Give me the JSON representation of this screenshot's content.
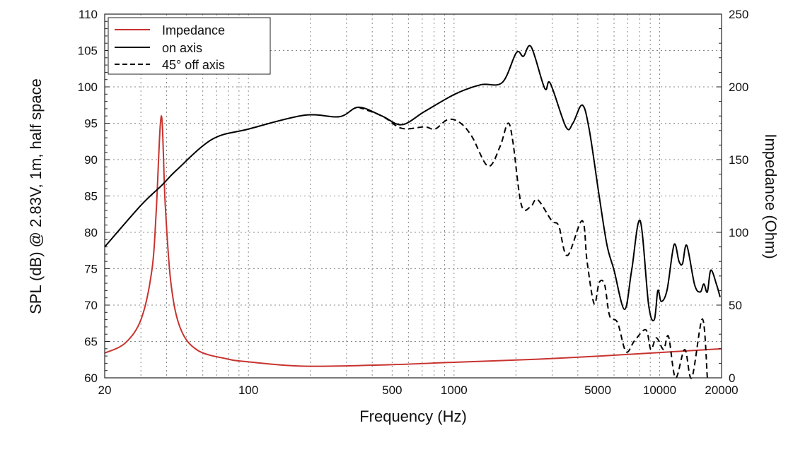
{
  "chart_data": {
    "type": "line",
    "xlabel": "Frequency (Hz)",
    "ylabel": "SPL (dB) @ 2.83V, 1m, half space",
    "y2label": "Impedance (Ohm)",
    "xscale": "log",
    "xlim": [
      20,
      20000
    ],
    "ylim": [
      60,
      110
    ],
    "y2lim": [
      0,
      250
    ],
    "grid": true,
    "legend_placement": "top-left",
    "xticks": [
      20,
      100,
      500,
      1000,
      5000,
      10000,
      20000
    ],
    "yticks": [
      60,
      65,
      70,
      75,
      80,
      85,
      90,
      95,
      100,
      105,
      110
    ],
    "y2ticks": [
      0,
      50,
      100,
      150,
      200,
      250
    ],
    "series": [
      {
        "name": "Impedance",
        "axis": "right",
        "color": "#c8332f",
        "dash": "solid",
        "x": [
          20,
          25.2,
          30.2,
          34,
          35.6,
          37.7,
          39.4,
          42,
          46.7,
          56.5,
          78.9,
          100,
          187,
          480,
          1000,
          2350,
          5150,
          20000
        ],
        "y": [
          17,
          24,
          41,
          75,
          114,
          180,
          119,
          65,
          34,
          19,
          13,
          11,
          8,
          9,
          10.7,
          12.6,
          15,
          20
        ]
      },
      {
        "name": "on axis",
        "axis": "left",
        "color": "#000000",
        "dash": "solid",
        "x": [
          20,
          30.2,
          37.7,
          44.9,
          66.7,
          100,
          187,
          277,
          343,
          446,
          557,
          718,
          1010,
          1352,
          1716,
          2010,
          2174,
          2372,
          2760,
          2938,
          3500,
          3785,
          4200,
          4540,
          5080,
          5540,
          6000,
          6750,
          7310,
          8040,
          8840,
          9420,
          9800,
          10190,
          10870,
          11750,
          12420,
          12920,
          13550,
          14790,
          15750,
          16400,
          17060,
          17740,
          18920,
          19680
        ],
        "y": [
          78,
          83.8,
          86.4,
          88.6,
          92.8,
          94.2,
          96.1,
          95.9,
          97.2,
          96,
          94.8,
          96.6,
          99,
          100.3,
          100.6,
          104.7,
          104.2,
          105.5,
          99.8,
          100.5,
          94.5,
          95,
          97.5,
          94.2,
          85,
          78.3,
          74.8,
          69.4,
          74.8,
          81.6,
          70,
          68,
          72,
          70.5,
          72.1,
          78.3,
          76,
          75.7,
          78.2,
          72.8,
          71.8,
          72.9,
          71.8,
          74.8,
          72.8,
          71.1
        ]
      },
      {
        "name": "45° off axis",
        "axis": "left",
        "color": "#000000",
        "dash": "dashed",
        "x": [
          343,
          446,
          557,
          718,
          808,
          932,
          1066,
          1220,
          1464,
          1674,
          1828,
          1932,
          2124,
          2356,
          2548,
          2986,
          3230,
          3556,
          4200,
          4436,
          4800,
          5080,
          5400,
          5716,
          6240,
          6860,
          7550,
          8570,
          9060,
          9640,
          10450,
          11040,
          11940,
          13240,
          14330,
          16140,
          17060
        ],
        "y": [
          97.2,
          96,
          94.3,
          94.5,
          94.2,
          95.5,
          95.1,
          93.2,
          89.1,
          91.8,
          95,
          92.5,
          83.8,
          83.5,
          84.5,
          81.6,
          80.9,
          76.8,
          81.6,
          76,
          70.2,
          73.1,
          72.8,
          68.5,
          67.6,
          63.6,
          65.1,
          66.6,
          63.9,
          65.5,
          63.9,
          65.7,
          60,
          63.9,
          60,
          68.1,
          60
        ]
      }
    ]
  }
}
